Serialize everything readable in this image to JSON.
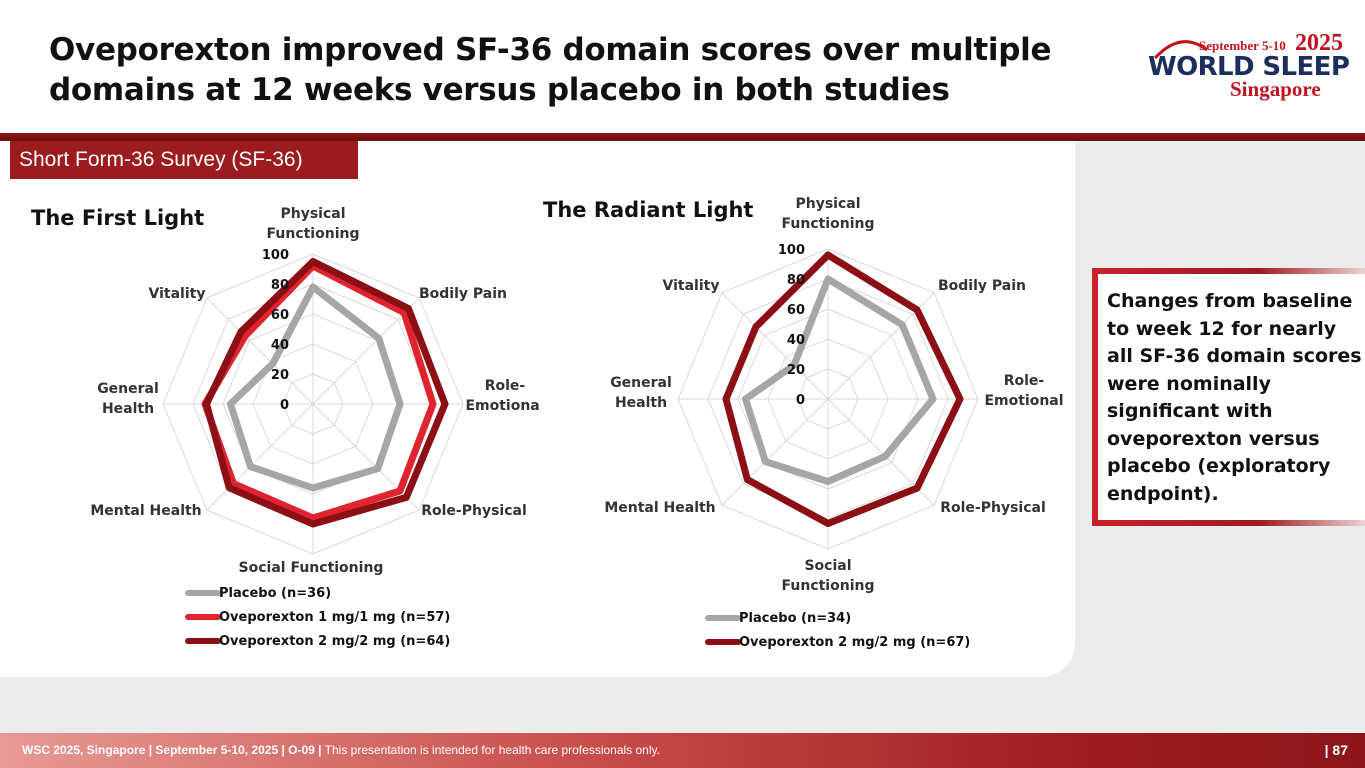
{
  "header": {
    "title_line1": "Oveporexton improved SF-36 domain scores over multiple",
    "title_line2": "domains at 12 weeks versus placebo in both studies"
  },
  "logo": {
    "dates": "September 5-10",
    "year": "2025",
    "brand": "WORLD SLEEP",
    "city": "Singapore"
  },
  "section_tab": "Short Form-36 Survey (SF-36)",
  "callout": "Changes from baseline to week 12 for nearly all SF-36 domain scores were nominally significant with oveporexton versus placebo (exploratory endpoint).",
  "footer": {
    "bold": "WSC 2025, Singapore  |  September 5-10, 2025  |  O-09  |",
    "note": "This presentation is intended for health care professionals only.",
    "page": "| 87"
  },
  "colors": {
    "placebo": "#a6a6a6",
    "ove_1mg": "#e0242f",
    "ove_2mg": "#8b0f14",
    "grid": "#d9d9d9",
    "accent": "#9b1b1f"
  },
  "chart_data": [
    {
      "type": "radar",
      "title": "The First Light",
      "axes": [
        "Physical Functioning",
        "Bodily Pain",
        "Role-Emotional",
        "Role-Physical",
        "Social Functioning",
        "Mental Health",
        "General Health",
        "Vitality"
      ],
      "axis_label_lines": [
        [
          "Physical",
          "Functioning"
        ],
        [
          "Bodily Pain"
        ],
        [
          "Role-",
          "Emotional"
        ],
        [
          "Role-Physical"
        ],
        [
          "Social Functioning"
        ],
        [
          "Mental Health"
        ],
        [
          "General",
          "Health"
        ],
        [
          "Vitality"
        ]
      ],
      "ticks": [
        "0",
        "20",
        "40",
        "60",
        "80",
        "100"
      ],
      "range": [
        0,
        100
      ],
      "series": [
        {
          "name": "Placebo (n=36)",
          "color_key": "placebo",
          "values": [
            78,
            62,
            58,
            61,
            56,
            59,
            55,
            38
          ]
        },
        {
          "name": "Oveporexton 1 mg/1 mg (n=57)",
          "color_key": "ove_1mg",
          "values": [
            92,
            86,
            80,
            82,
            76,
            75,
            72,
            64
          ]
        },
        {
          "name": "Oveporexton 2 mg/2 mg (n=64)",
          "color_key": "ove_2mg",
          "values": [
            95,
            90,
            88,
            88,
            80,
            79,
            71,
            68
          ]
        }
      ],
      "legend_position": "bottom-center"
    },
    {
      "type": "radar",
      "title": "The Radiant Light",
      "axes": [
        "Physical Functioning",
        "Bodily Pain",
        "Role-Emotional",
        "Role-Physical",
        "Social Functioning",
        "Mental Health",
        "General Health",
        "Vitality"
      ],
      "axis_label_lines": [
        [
          "Physical",
          "Functioning"
        ],
        [
          "Bodily Pain"
        ],
        [
          "Role-",
          "Emotional"
        ],
        [
          "Role-Physical"
        ],
        [
          "Social",
          "Functioning"
        ],
        [
          "Mental Health"
        ],
        [
          "General",
          "Health"
        ],
        [
          "Vitality"
        ]
      ],
      "ticks": [
        "0",
        "20",
        "40",
        "60",
        "80",
        "100"
      ],
      "range": [
        0,
        100
      ],
      "series": [
        {
          "name": "Placebo (n=34)",
          "color_key": "placebo",
          "values": [
            80,
            70,
            70,
            54,
            55,
            59,
            55,
            32
          ]
        },
        {
          "name": "Oveporexton 2 mg/2 mg (n=67)",
          "color_key": "ove_2mg",
          "values": [
            96,
            84,
            88,
            84,
            83,
            76,
            68,
            68
          ]
        }
      ],
      "legend_position": "bottom-center"
    }
  ]
}
